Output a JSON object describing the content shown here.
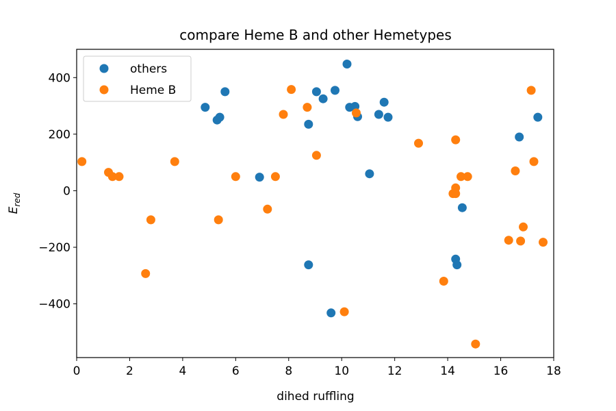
{
  "chart_data": {
    "type": "scatter",
    "title": "compare Heme B and other Hemetypes",
    "xlabel": "dihed ruffling",
    "ylabel": "E",
    "ylabel_subscript": "red",
    "xlim": [
      0,
      18
    ],
    "ylim": [
      -590,
      500
    ],
    "xticks": [
      0,
      2,
      4,
      6,
      8,
      10,
      12,
      14,
      16,
      18
    ],
    "yticks": [
      -400,
      -200,
      0,
      200,
      400
    ],
    "grid": false,
    "legend_position": "top-left",
    "series": [
      {
        "name": "others",
        "color": "#1f77b4",
        "points": [
          [
            4.85,
            295
          ],
          [
            5.3,
            250
          ],
          [
            5.4,
            260
          ],
          [
            5.6,
            350
          ],
          [
            6.9,
            48
          ],
          [
            8.75,
            235
          ],
          [
            8.75,
            -262
          ],
          [
            9.05,
            350
          ],
          [
            9.3,
            325
          ],
          [
            9.6,
            -432
          ],
          [
            9.75,
            355
          ],
          [
            10.2,
            448
          ],
          [
            10.3,
            295
          ],
          [
            10.5,
            298
          ],
          [
            10.6,
            262
          ],
          [
            11.05,
            60
          ],
          [
            11.4,
            270
          ],
          [
            11.6,
            313
          ],
          [
            11.75,
            260
          ],
          [
            14.3,
            -242
          ],
          [
            14.35,
            -262
          ],
          [
            14.55,
            -60
          ],
          [
            16.7,
            190
          ],
          [
            17.4,
            260
          ]
        ]
      },
      {
        "name": "Heme B",
        "color": "#ff7f0e",
        "points": [
          [
            0.2,
            103
          ],
          [
            1.2,
            65
          ],
          [
            1.35,
            50
          ],
          [
            1.6,
            50
          ],
          [
            2.6,
            -293
          ],
          [
            2.8,
            -103
          ],
          [
            3.7,
            103
          ],
          [
            5.35,
            -103
          ],
          [
            6.0,
            50
          ],
          [
            7.2,
            -65
          ],
          [
            7.5,
            50
          ],
          [
            7.8,
            270
          ],
          [
            8.1,
            358
          ],
          [
            8.7,
            295
          ],
          [
            9.05,
            125
          ],
          [
            10.1,
            -428
          ],
          [
            10.55,
            275
          ],
          [
            12.9,
            168
          ],
          [
            13.85,
            -320
          ],
          [
            14.2,
            -10
          ],
          [
            14.3,
            -10
          ],
          [
            14.3,
            10
          ],
          [
            14.3,
            180
          ],
          [
            14.5,
            50
          ],
          [
            14.75,
            50
          ],
          [
            15.05,
            -542
          ],
          [
            16.3,
            -175
          ],
          [
            16.55,
            70
          ],
          [
            16.75,
            -178
          ],
          [
            16.85,
            -128
          ],
          [
            17.15,
            355
          ],
          [
            17.25,
            103
          ],
          [
            17.6,
            -182
          ]
        ]
      }
    ]
  }
}
